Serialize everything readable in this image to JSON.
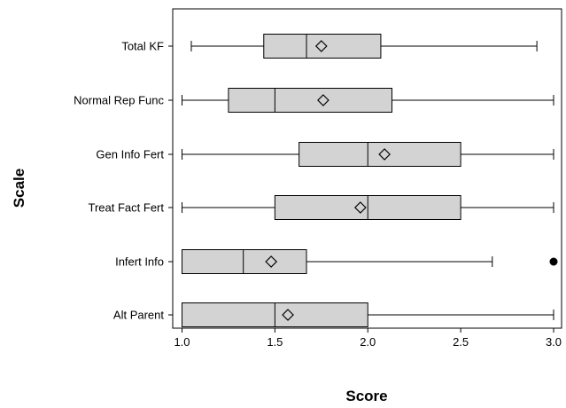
{
  "chart_data": {
    "type": "boxplot",
    "orientation": "horizontal",
    "xlabel": "Score",
    "ylabel": "Scale",
    "xlim": [
      0.95,
      3.0
    ],
    "xticks": [
      "1.0",
      "1.5",
      "2.0",
      "2.5",
      "3.0"
    ],
    "grid": false,
    "colors": {
      "box_fill": "#d3d3d3",
      "stroke": "#000000"
    },
    "categories": [
      "Total KF",
      "Normal Rep Func",
      "Gen Info Fert",
      "Treat Fact Fert",
      "Infert Info",
      "Alt Parent"
    ],
    "boxes": [
      {
        "label": "Total KF",
        "whisker_low": 1.05,
        "q1": 1.44,
        "median": 1.67,
        "q3": 2.07,
        "whisker_high": 2.91,
        "mean": 1.75,
        "outliers": []
      },
      {
        "label": "Normal Rep Func",
        "whisker_low": 1.0,
        "q1": 1.25,
        "median": 1.5,
        "q3": 2.13,
        "whisker_high": 3.0,
        "mean": 1.76,
        "outliers": []
      },
      {
        "label": "Gen Info Fert",
        "whisker_low": 1.0,
        "q1": 1.63,
        "median": 2.0,
        "q3": 2.5,
        "whisker_high": 3.0,
        "mean": 2.09,
        "outliers": []
      },
      {
        "label": "Treat Fact Fert",
        "whisker_low": 1.0,
        "q1": 1.5,
        "median": 2.0,
        "q3": 2.5,
        "whisker_high": 3.0,
        "mean": 1.96,
        "outliers": []
      },
      {
        "label": "Infert Info",
        "whisker_low": 1.0,
        "q1": 1.0,
        "median": 1.33,
        "q3": 1.67,
        "whisker_high": 2.67,
        "mean": 1.48,
        "outliers": [
          3.0
        ]
      },
      {
        "label": "Alt Parent",
        "whisker_low": 1.0,
        "q1": 1.0,
        "median": 1.5,
        "q3": 2.0,
        "whisker_high": 3.0,
        "mean": 1.57,
        "outliers": []
      }
    ]
  }
}
